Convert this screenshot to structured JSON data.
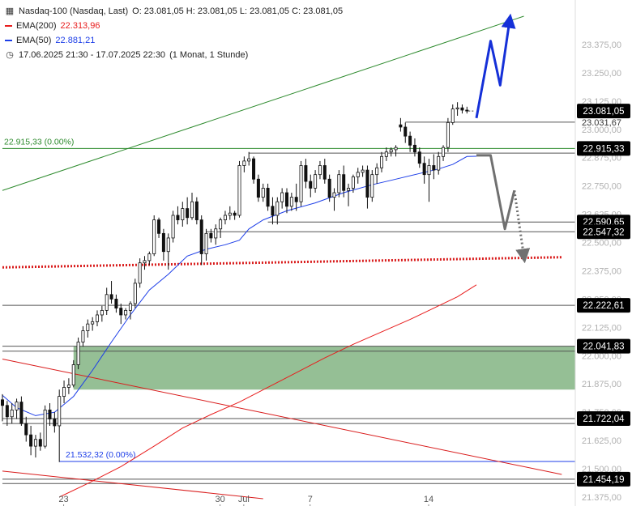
{
  "legend": {
    "instrument": "Nasdaq-100 (Nasdaq, Last)",
    "ohlc": "O: 23.081,05  H: 23.081,05  L: 23.081,05  C: 23.081,05",
    "ema200_label": "EMA(200)",
    "ema200_value": "22.313,96",
    "ema50_label": "EMA(50)",
    "ema50_value": "22.881,21",
    "period": "17.06.2025 21:30 - 17.07.2025 22:30",
    "interval": "(1 Monat, 1 Stunde)",
    "icons": [
      "chart-icon",
      "clock-icon"
    ]
  },
  "colors": {
    "ema200": "#e81d1d",
    "ema50": "#1d3ee8",
    "trend_green": "#2e8b2e",
    "support_red": "#d91c1c",
    "gap_zone": "#8fbc8f",
    "bull_arrow": "#1530d8",
    "bear_arrow": "#707070",
    "candle": "#111111",
    "price_badge": "#000000"
  },
  "chart_data": {
    "type": "candlestick",
    "ylim": [
      21375,
      23500
    ],
    "y_ticks": [
      "23.375,00",
      "23.250,00",
      "23.125,00",
      "23.000,00",
      "22.875,00",
      "22.750,00",
      "22.625,00",
      "22.500,00",
      "22.375,00",
      "22.250,00",
      "22.125,00",
      "22.000,00",
      "21.875,00",
      "21.750,00",
      "21.625,00",
      "21.500,00",
      "21.375,00"
    ],
    "y_tick_values": [
      23375,
      23250,
      23125,
      23000,
      22875,
      22750,
      22625,
      22500,
      22375,
      22250,
      22125,
      22000,
      21875,
      21750,
      21625,
      21500,
      21375
    ],
    "x_ticks": [
      {
        "label": "23",
        "bar": 3
      },
      {
        "label": "30",
        "bar": 36
      },
      {
        "label": "Jul",
        "bar": 41
      },
      {
        "label": "7",
        "bar": 55
      },
      {
        "label": "14",
        "bar": 80
      }
    ],
    "price_labels": [
      {
        "text": "23.081,05",
        "value": 23081.05,
        "style": "badge"
      },
      {
        "text": "23.031,67",
        "value": 23031.67,
        "style": "hidden"
      },
      {
        "text": "22.915,33",
        "value": 22915.33,
        "style": "badge"
      },
      {
        "text": "22.590,65",
        "value": 22590.65,
        "style": "badge"
      },
      {
        "text": "22.547,32",
        "value": 22547.32,
        "style": "badge"
      },
      {
        "text": "22.222,61",
        "value": 22222.61,
        "style": "badge"
      },
      {
        "text": "22.041,83",
        "value": 22041.83,
        "style": "badge"
      },
      {
        "text": "21.722,04",
        "value": 21722.04,
        "style": "badge"
      },
      {
        "text": "21.454,19",
        "value": 21454.19,
        "style": "badge"
      }
    ],
    "horizontal_levels": [
      {
        "value": 23031.67,
        "from_bar": 85,
        "color": "#555555"
      },
      {
        "value": 22915.33,
        "from_bar": 0,
        "color": "#2e8b2e"
      },
      {
        "value": 22895,
        "from_bar": 52,
        "color": "#555555"
      },
      {
        "value": 22590.65,
        "from_bar": 56,
        "color": "#555555"
      },
      {
        "value": 22547.32,
        "from_bar": 43,
        "color": "#555555"
      },
      {
        "value": 22222.61,
        "from_bar": 0,
        "color": "#555555"
      },
      {
        "value": 22041.83,
        "from_bar": 0,
        "color": "#555555"
      },
      {
        "value": 22020,
        "from_bar": 0,
        "color": "#555555"
      },
      {
        "value": 21722.04,
        "from_bar": 0,
        "color": "#555555"
      },
      {
        "value": 21700,
        "from_bar": 0,
        "color": "#555555"
      },
      {
        "value": 21532.32,
        "from_bar": 12,
        "color": "#1d3ee8"
      },
      {
        "value": 21454.19,
        "from_bar": 0,
        "color": "#555555"
      },
      {
        "value": 21435,
        "from_bar": 0,
        "color": "#555555"
      }
    ],
    "level_annotations": [
      {
        "text": "22.915,33 (0.00%)",
        "value": 22915.33,
        "bar": 0,
        "color": "#2e8b2e"
      },
      {
        "text": "21.532,32 (0.00%)",
        "value": 21532.32,
        "bar": 13,
        "color": "#1d3ee8"
      }
    ],
    "gap_zone": {
      "from_bar": 15,
      "y_top": 22041.83,
      "y_bottom": 21850
    },
    "trend_lines": [
      {
        "name_key": "upper-green",
        "color": "#2e8b2e",
        "width": 1,
        "from": [
          0,
          22730
        ],
        "to": [
          110,
          23500
        ]
      },
      {
        "name_key": "red-channel-top",
        "color": "#d91c1c",
        "width": 1,
        "from": [
          0,
          21985
        ],
        "to": [
          118,
          21475
        ]
      },
      {
        "name_key": "red-channel-bottom",
        "color": "#d91c1c",
        "width": 1,
        "from": [
          0,
          21490
        ],
        "to": [
          55,
          21368
        ]
      },
      {
        "name_key": "dotted-support",
        "color": "#d91c1c",
        "width": 3,
        "dash": "2,2",
        "from": [
          0,
          22390
        ],
        "to": [
          118,
          22435
        ]
      }
    ],
    "projections": [
      {
        "name_key": "bull-arrow",
        "color": "#1530d8",
        "points": [
          [
            100,
            23050
          ],
          [
            103,
            23390
          ],
          [
            105,
            23195
          ],
          [
            107,
            23480
          ]
        ]
      },
      {
        "name_key": "bear-arrow",
        "color": "#707070",
        "points": [
          [
            100,
            22885
          ],
          [
            103,
            22885
          ],
          [
            106,
            22560
          ],
          [
            108,
            22730
          ]
        ],
        "dotted_tail": [
          [
            108,
            22730
          ],
          [
            110,
            22440
          ]
        ]
      }
    ],
    "series": [
      {
        "name": "EMA(50)",
        "color": "#1d3ee8",
        "points": [
          [
            0,
            21825
          ],
          [
            3,
            21770
          ],
          [
            7,
            21735
          ],
          [
            11,
            21750
          ],
          [
            15,
            21820
          ],
          [
            19,
            21935
          ],
          [
            23,
            22060
          ],
          [
            27,
            22180
          ],
          [
            31,
            22290
          ],
          [
            35,
            22360
          ],
          [
            39,
            22440
          ],
          [
            43,
            22470
          ],
          [
            47,
            22490
          ],
          [
            50,
            22510
          ],
          [
            52,
            22560
          ],
          [
            55,
            22600
          ],
          [
            60,
            22640
          ],
          [
            66,
            22675
          ],
          [
            72,
            22720
          ],
          [
            78,
            22755
          ],
          [
            83,
            22780
          ],
          [
            88,
            22805
          ],
          [
            92,
            22825
          ],
          [
            95,
            22845
          ],
          [
            98,
            22880
          ],
          [
            100,
            22881
          ]
        ]
      },
      {
        "name": "EMA(200)",
        "color": "#e81d1d",
        "points": [
          [
            12,
            21375
          ],
          [
            18,
            21435
          ],
          [
            25,
            21510
          ],
          [
            32,
            21600
          ],
          [
            38,
            21680
          ],
          [
            44,
            21740
          ],
          [
            50,
            21795
          ],
          [
            56,
            21860
          ],
          [
            62,
            21925
          ],
          [
            68,
            21990
          ],
          [
            74,
            22050
          ],
          [
            80,
            22105
          ],
          [
            86,
            22160
          ],
          [
            91,
            22210
          ],
          [
            96,
            22260
          ],
          [
            100,
            22313
          ]
        ]
      }
    ],
    "candles": [
      [
        21805,
        21830,
        21710,
        21780
      ],
      [
        21780,
        21800,
        21690,
        21730
      ],
      [
        21730,
        21790,
        21700,
        21760
      ],
      [
        21760,
        21810,
        21720,
        21795
      ],
      [
        21795,
        21820,
        21690,
        21700
      ],
      [
        21700,
        21730,
        21620,
        21650
      ],
      [
        21650,
        21690,
        21560,
        21600
      ],
      [
        21600,
        21650,
        21550,
        21630
      ],
      [
        21630,
        21660,
        21580,
        21600
      ],
      [
        21600,
        21780,
        21590,
        21760
      ],
      [
        21760,
        21790,
        21690,
        21720
      ],
      [
        21720,
        21750,
        21660,
        21690
      ],
      [
        21690,
        21850,
        21530,
        21820
      ],
      [
        21820,
        21890,
        21790,
        21860
      ],
      [
        21860,
        21900,
        21830,
        21870
      ],
      [
        21870,
        21980,
        21860,
        21960
      ],
      [
        21960,
        22080,
        21940,
        22060
      ],
      [
        22060,
        22130,
        22040,
        22110
      ],
      [
        22110,
        22160,
        22080,
        22140
      ],
      [
        22140,
        22170,
        22110,
        22150
      ],
      [
        22150,
        22200,
        22130,
        22180
      ],
      [
        22180,
        22220,
        22150,
        22200
      ],
      [
        22200,
        22300,
        22180,
        22270
      ],
      [
        22270,
        22330,
        22230,
        22250
      ],
      [
        22250,
        22270,
        22190,
        22210
      ],
      [
        22210,
        22230,
        22140,
        22180
      ],
      [
        22180,
        22210,
        22160,
        22200
      ],
      [
        22200,
        22240,
        22160,
        22230
      ],
      [
        22230,
        22340,
        22210,
        22320
      ],
      [
        22320,
        22430,
        22300,
        22410
      ],
      [
        22410,
        22440,
        22380,
        22420
      ],
      [
        22420,
        22460,
        22400,
        22450
      ],
      [
        22450,
        22620,
        22440,
        22600
      ],
      [
        22600,
        22610,
        22520,
        22540
      ],
      [
        22540,
        22560,
        22420,
        22460
      ],
      [
        22460,
        22540,
        22380,
        22520
      ],
      [
        22520,
        22640,
        22500,
        22620
      ],
      [
        22620,
        22660,
        22580,
        22600
      ],
      [
        22600,
        22680,
        22570,
        22650
      ],
      [
        22650,
        22700,
        22580,
        22610
      ],
      [
        22610,
        22720,
        22600,
        22680
      ],
      [
        22680,
        22700,
        22580,
        22600
      ],
      [
        22600,
        22620,
        22400,
        22450
      ],
      [
        22450,
        22560,
        22420,
        22540
      ],
      [
        22540,
        22560,
        22500,
        22520
      ],
      [
        22520,
        22580,
        22490,
        22560
      ],
      [
        22560,
        22610,
        22520,
        22600
      ],
      [
        22600,
        22640,
        22580,
        22620
      ],
      [
        22620,
        22660,
        22600,
        22630
      ],
      [
        22630,
        22640,
        22600,
        22620
      ],
      [
        22620,
        22860,
        22610,
        22840
      ],
      [
        22840,
        22880,
        22810,
        22860
      ],
      [
        22860,
        22900,
        22840,
        22870
      ],
      [
        22870,
        22880,
        22760,
        22780
      ],
      [
        22780,
        22800,
        22680,
        22700
      ],
      [
        22700,
        22760,
        22680,
        22740
      ],
      [
        22740,
        22760,
        22640,
        22660
      ],
      [
        22660,
        22700,
        22580,
        22620
      ],
      [
        22620,
        22700,
        22580,
        22680
      ],
      [
        22680,
        22740,
        22650,
        22720
      ],
      [
        22720,
        22740,
        22630,
        22660
      ],
      [
        22660,
        22720,
        22640,
        22700
      ],
      [
        22700,
        22760,
        22640,
        22680
      ],
      [
        22680,
        22860,
        22660,
        22840
      ],
      [
        22840,
        22870,
        22740,
        22770
      ],
      [
        22770,
        22800,
        22700,
        22740
      ],
      [
        22740,
        22820,
        22720,
        22800
      ],
      [
        22800,
        22860,
        22780,
        22840
      ],
      [
        22840,
        22870,
        22760,
        22780
      ],
      [
        22780,
        22800,
        22680,
        22700
      ],
      [
        22700,
        22740,
        22640,
        22720
      ],
      [
        22720,
        22820,
        22700,
        22800
      ],
      [
        22800,
        22840,
        22700,
        22730
      ],
      [
        22730,
        22760,
        22660,
        22740
      ],
      [
        22740,
        22800,
        22720,
        22790
      ],
      [
        22790,
        22830,
        22760,
        22810
      ],
      [
        22810,
        22840,
        22790,
        22820
      ],
      [
        22820,
        22840,
        22650,
        22700
      ],
      [
        22700,
        22820,
        22680,
        22800
      ],
      [
        22800,
        22850,
        22760,
        22830
      ],
      [
        22830,
        22900,
        22810,
        22880
      ],
      [
        22880,
        22920,
        22860,
        22900
      ],
      [
        22900,
        22920,
        22880,
        22910
      ],
      [
        22910,
        22930,
        22880,
        22920
      ],
      [
        23020,
        23050,
        22990,
        23010
      ],
      [
        23010,
        23030,
        22940,
        22970
      ],
      [
        22970,
        22990,
        22900,
        22930
      ],
      [
        22930,
        22960,
        22880,
        22900
      ],
      [
        22900,
        22920,
        22830,
        22850
      ],
      [
        22850,
        22880,
        22760,
        22800
      ],
      [
        22800,
        22870,
        22680,
        22840
      ],
      [
        22840,
        22890,
        22780,
        22820
      ],
      [
        22820,
        22900,
        22800,
        22880
      ],
      [
        22880,
        22930,
        22860,
        22920
      ],
      [
        22920,
        23050,
        22900,
        23030
      ],
      [
        23030,
        23110,
        23020,
        23090
      ],
      [
        23090,
        23120,
        23060,
        23095
      ],
      [
        23095,
        23110,
        23070,
        23085
      ],
      [
        23085,
        23100,
        23070,
        23081
      ]
    ]
  }
}
